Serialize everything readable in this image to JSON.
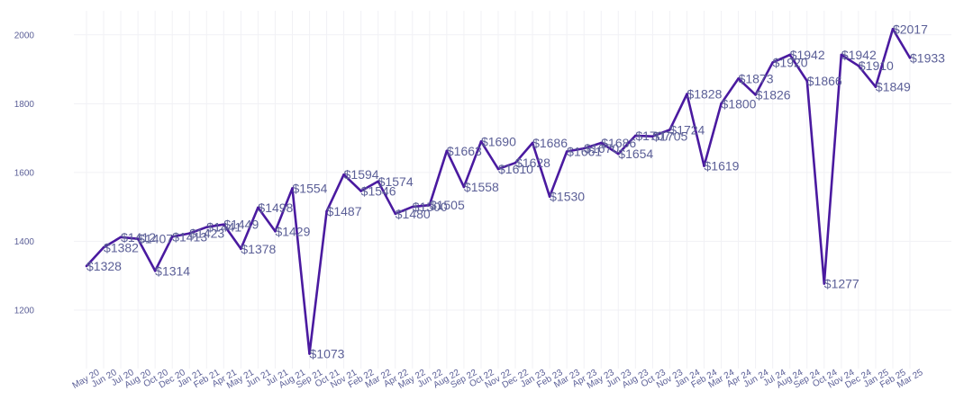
{
  "chart_data": {
    "type": "line",
    "title": "",
    "xlabel": "",
    "ylabel": "",
    "ylim": [
      1030,
      2070
    ],
    "yticks": [
      1200,
      1400,
      1600,
      1800,
      2000
    ],
    "y_tick_labels": [
      "1200",
      "1400",
      "1600",
      "1800",
      "2000"
    ],
    "grid": true,
    "legend": "none",
    "colors": {
      "line": "#4a1aa0",
      "labels": "#5b5f97",
      "grid": "#f1f1f5"
    },
    "x_tick_labels": [
      "May 20",
      "Jun 20",
      "Jul 20",
      "Aug 20",
      "Oct 20",
      "Dec 20",
      "Jan 21",
      "Feb 21",
      "Apr 21",
      "May 21",
      "Jun 21",
      "Jul 21",
      "Aug 21",
      "Sep 21",
      "Oct 21",
      "Nov 21",
      "Feb 22",
      "Mar 22",
      "Apr 22",
      "May 22",
      "Jun 22",
      "Aug 22",
      "Sep 22",
      "Oct 22",
      "Nov 22",
      "Dec 22",
      "Jan 23",
      "Feb 23",
      "Mar 23",
      "Apr 23",
      "May 23",
      "Jun 23",
      "Aug 23",
      "Oct 23",
      "Nov 23",
      "Jan 24",
      "Feb 24",
      "Mar 24",
      "Apr 24",
      "Jun 24",
      "Jul 24",
      "Aug 24",
      "Sep 24",
      "Oct 24",
      "Nov 24",
      "Dec 24",
      "Jan 25",
      "Feb 25",
      "Mar 25"
    ],
    "series": [
      {
        "values": [
          1328,
          1382,
          1412,
          1407,
          1314,
          1413,
          1423,
          1441,
          1449,
          1378,
          1498,
          1429,
          1554,
          1073,
          1487,
          1594,
          1546,
          1574,
          1480,
          1500,
          1505,
          1663,
          1558,
          1690,
          1610,
          1628,
          1686,
          1530,
          1661,
          1670,
          1686,
          1654,
          1707,
          1705,
          1724,
          1828,
          1619,
          1800,
          1873,
          1826,
          1920,
          1942,
          1866,
          1277,
          1942,
          1910,
          1849,
          2017,
          1933
        ],
        "labels": [
          "$1328",
          "$1382",
          "$1412",
          "$1407",
          "$1314",
          "$1413",
          "$1423",
          "$1441",
          "$1449",
          "$1378",
          "$1498",
          "$1429",
          "$1554",
          "$1073",
          "$1487",
          "$1594",
          "$1546",
          "$1574",
          "$1480",
          "$1500",
          "$1505",
          "$1663",
          "$1558",
          "$1690",
          "$1610",
          "$1628",
          "$1686",
          "$1530",
          "$1661",
          "$1670",
          "$1686",
          "$1654",
          "$1707",
          "$1705",
          "$1724",
          "$1828",
          "$1619",
          "$1800",
          "$1873",
          "$1826",
          "$1920",
          "$1942",
          "$1866",
          "$1277",
          "$1942",
          "$1910",
          "$1849",
          "$2017",
          "$1933"
        ]
      }
    ]
  }
}
